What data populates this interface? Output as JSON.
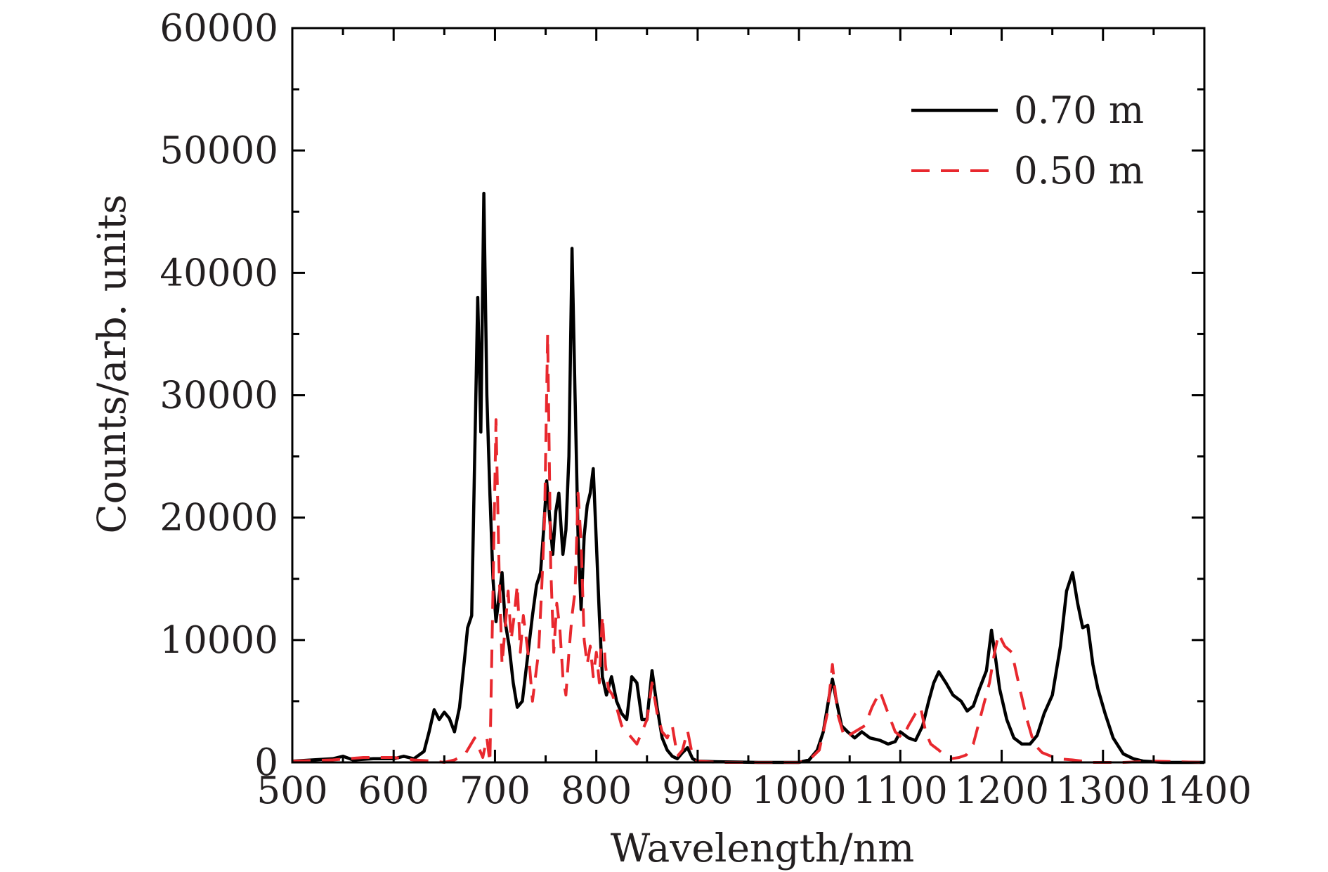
{
  "chart_data": {
    "type": "line",
    "xlabel": "Wavelength/nm",
    "ylabel": "Counts/arb. units",
    "xlim": [
      500,
      1400
    ],
    "ylim": [
      0,
      60000
    ],
    "x_ticks": [
      500,
      600,
      700,
      800,
      900,
      1000,
      1100,
      1200,
      1300,
      1400
    ],
    "x_tick_labels": [
      "500",
      "600",
      "700",
      "800",
      "900",
      "1000",
      "1100",
      "1200",
      "1300",
      "1400"
    ],
    "y_ticks": [
      0,
      10000,
      20000,
      30000,
      40000,
      50000,
      60000
    ],
    "y_tick_labels": [
      "0",
      "10000",
      "20000",
      "30000",
      "40000",
      "50000",
      "60000"
    ],
    "grid": false,
    "legend_position": "top-right",
    "series": [
      {
        "name": "0.70 m",
        "color": "#000000",
        "style": "solid",
        "points": [
          [
            500,
            100
          ],
          [
            520,
            200
          ],
          [
            540,
            300
          ],
          [
            550,
            500
          ],
          [
            560,
            200
          ],
          [
            580,
            300
          ],
          [
            600,
            300
          ],
          [
            610,
            500
          ],
          [
            620,
            300
          ],
          [
            630,
            900
          ],
          [
            635,
            2500
          ],
          [
            640,
            4300
          ],
          [
            645,
            3500
          ],
          [
            650,
            4100
          ],
          [
            655,
            3600
          ],
          [
            660,
            2500
          ],
          [
            665,
            4500
          ],
          [
            670,
            8500
          ],
          [
            673,
            11000
          ],
          [
            677,
            12000
          ],
          [
            680,
            25000
          ],
          [
            683,
            38000
          ],
          [
            686,
            27000
          ],
          [
            689,
            46500
          ],
          [
            692,
            30000
          ],
          [
            695,
            22000
          ],
          [
            698,
            15000
          ],
          [
            701,
            11500
          ],
          [
            704,
            13500
          ],
          [
            707,
            15500
          ],
          [
            710,
            11500
          ],
          [
            714,
            9500
          ],
          [
            718,
            6500
          ],
          [
            722,
            4500
          ],
          [
            727,
            5000
          ],
          [
            732,
            8500
          ],
          [
            737,
            12000
          ],
          [
            741,
            14500
          ],
          [
            745,
            15500
          ],
          [
            748,
            19000
          ],
          [
            751,
            23000
          ],
          [
            754,
            20000
          ],
          [
            757,
            17000
          ],
          [
            760,
            20500
          ],
          [
            763,
            22000
          ],
          [
            767,
            17000
          ],
          [
            770,
            19000
          ],
          [
            773,
            25000
          ],
          [
            776,
            42000
          ],
          [
            779,
            30000
          ],
          [
            782,
            18500
          ],
          [
            785,
            12500
          ],
          [
            788,
            18500
          ],
          [
            791,
            21000
          ],
          [
            794,
            22000
          ],
          [
            797,
            24000
          ],
          [
            800,
            18000
          ],
          [
            803,
            12000
          ],
          [
            806,
            7000
          ],
          [
            810,
            5500
          ],
          [
            815,
            7000
          ],
          [
            820,
            5000
          ],
          [
            825,
            4000
          ],
          [
            830,
            3500
          ],
          [
            835,
            7000
          ],
          [
            840,
            6500
          ],
          [
            845,
            3500
          ],
          [
            850,
            3500
          ],
          [
            855,
            7500
          ],
          [
            860,
            4500
          ],
          [
            865,
            2000
          ],
          [
            870,
            1000
          ],
          [
            875,
            500
          ],
          [
            880,
            300
          ],
          [
            885,
            800
          ],
          [
            890,
            1200
          ],
          [
            895,
            300
          ],
          [
            900,
            100
          ],
          [
            920,
            50
          ],
          [
            960,
            0
          ],
          [
            1000,
            0
          ],
          [
            1010,
            200
          ],
          [
            1018,
            1000
          ],
          [
            1024,
            2500
          ],
          [
            1030,
            5500
          ],
          [
            1033,
            6800
          ],
          [
            1037,
            5000
          ],
          [
            1042,
            3000
          ],
          [
            1048,
            2500
          ],
          [
            1055,
            2000
          ],
          [
            1062,
            2500
          ],
          [
            1070,
            2000
          ],
          [
            1080,
            1800
          ],
          [
            1088,
            1500
          ],
          [
            1095,
            1700
          ],
          [
            1100,
            2500
          ],
          [
            1108,
            2000
          ],
          [
            1115,
            1800
          ],
          [
            1122,
            3000
          ],
          [
            1128,
            5000
          ],
          [
            1133,
            6500
          ],
          [
            1138,
            7400
          ],
          [
            1145,
            6500
          ],
          [
            1152,
            5500
          ],
          [
            1160,
            5000
          ],
          [
            1166,
            4200
          ],
          [
            1172,
            4600
          ],
          [
            1178,
            6000
          ],
          [
            1185,
            7500
          ],
          [
            1190,
            10800
          ],
          [
            1194,
            8500
          ],
          [
            1198,
            6000
          ],
          [
            1205,
            3500
          ],
          [
            1212,
            2000
          ],
          [
            1220,
            1500
          ],
          [
            1228,
            1500
          ],
          [
            1235,
            2200
          ],
          [
            1242,
            4000
          ],
          [
            1250,
            5500
          ],
          [
            1258,
            9500
          ],
          [
            1264,
            14000
          ],
          [
            1270,
            15500
          ],
          [
            1275,
            13000
          ],
          [
            1280,
            11000
          ],
          [
            1285,
            11200
          ],
          [
            1290,
            8000
          ],
          [
            1295,
            6000
          ],
          [
            1302,
            4000
          ],
          [
            1310,
            2000
          ],
          [
            1320,
            700
          ],
          [
            1330,
            300
          ],
          [
            1340,
            100
          ],
          [
            1360,
            0
          ],
          [
            1400,
            0
          ]
        ]
      },
      {
        "name": "0.50 m",
        "color": "#e8282e",
        "style": "dashed",
        "points": [
          [
            500,
            100
          ],
          [
            540,
            200
          ],
          [
            570,
            400
          ],
          [
            600,
            400
          ],
          [
            620,
            200
          ],
          [
            640,
            100
          ],
          [
            650,
            0
          ],
          [
            660,
            200
          ],
          [
            670,
            600
          ],
          [
            680,
            2000
          ],
          [
            688,
            400
          ],
          [
            692,
            2000
          ],
          [
            695,
            0
          ],
          [
            698,
            14000
          ],
          [
            701,
            28000
          ],
          [
            704,
            16000
          ],
          [
            707,
            8000
          ],
          [
            710,
            11000
          ],
          [
            713,
            14000
          ],
          [
            716,
            10000
          ],
          [
            719,
            12000
          ],
          [
            722,
            14500
          ],
          [
            725,
            9000
          ],
          [
            728,
            12000
          ],
          [
            731,
            10000
          ],
          [
            734,
            8000
          ],
          [
            737,
            5000
          ],
          [
            740,
            7000
          ],
          [
            743,
            9000
          ],
          [
            746,
            14000
          ],
          [
            749,
            20000
          ],
          [
            752,
            35000
          ],
          [
            755,
            16000
          ],
          [
            758,
            9000
          ],
          [
            761,
            13000
          ],
          [
            764,
            11000
          ],
          [
            767,
            7000
          ],
          [
            770,
            5500
          ],
          [
            773,
            9000
          ],
          [
            776,
            12000
          ],
          [
            779,
            14000
          ],
          [
            782,
            22000
          ],
          [
            785,
            18000
          ],
          [
            788,
            10000
          ],
          [
            791,
            8000
          ],
          [
            794,
            9500
          ],
          [
            797,
            7000
          ],
          [
            800,
            9000
          ],
          [
            803,
            6500
          ],
          [
            806,
            12000
          ],
          [
            809,
            8000
          ],
          [
            812,
            6000
          ],
          [
            816,
            5500
          ],
          [
            820,
            4500
          ],
          [
            825,
            3000
          ],
          [
            830,
            2500
          ],
          [
            835,
            2000
          ],
          [
            840,
            1500
          ],
          [
            845,
            2500
          ],
          [
            850,
            3500
          ],
          [
            855,
            6500
          ],
          [
            860,
            4000
          ],
          [
            865,
            2500
          ],
          [
            870,
            2000
          ],
          [
            875,
            3000
          ],
          [
            880,
            500
          ],
          [
            885,
            1000
          ],
          [
            890,
            2600
          ],
          [
            895,
            500
          ],
          [
            900,
            100
          ],
          [
            920,
            0
          ],
          [
            1000,
            0
          ],
          [
            1010,
            200
          ],
          [
            1020,
            1000
          ],
          [
            1028,
            4000
          ],
          [
            1033,
            8000
          ],
          [
            1038,
            4000
          ],
          [
            1045,
            2000
          ],
          [
            1055,
            2500
          ],
          [
            1065,
            3000
          ],
          [
            1072,
            4500
          ],
          [
            1080,
            5800
          ],
          [
            1088,
            4000
          ],
          [
            1095,
            2500
          ],
          [
            1102,
            2000
          ],
          [
            1108,
            3000
          ],
          [
            1115,
            4000
          ],
          [
            1120,
            4500
          ],
          [
            1125,
            2500
          ],
          [
            1130,
            1500
          ],
          [
            1138,
            1000
          ],
          [
            1145,
            500
          ],
          [
            1150,
            300
          ],
          [
            1158,
            400
          ],
          [
            1165,
            600
          ],
          [
            1172,
            1500
          ],
          [
            1180,
            4000
          ],
          [
            1188,
            6500
          ],
          [
            1193,
            9000
          ],
          [
            1197,
            10500
          ],
          [
            1203,
            9500
          ],
          [
            1210,
            9000
          ],
          [
            1218,
            6000
          ],
          [
            1225,
            3500
          ],
          [
            1232,
            1500
          ],
          [
            1240,
            800
          ],
          [
            1255,
            300
          ],
          [
            1270,
            200
          ],
          [
            1290,
            0
          ],
          [
            1320,
            0
          ],
          [
            1350,
            100
          ],
          [
            1400,
            0
          ]
        ]
      }
    ]
  }
}
